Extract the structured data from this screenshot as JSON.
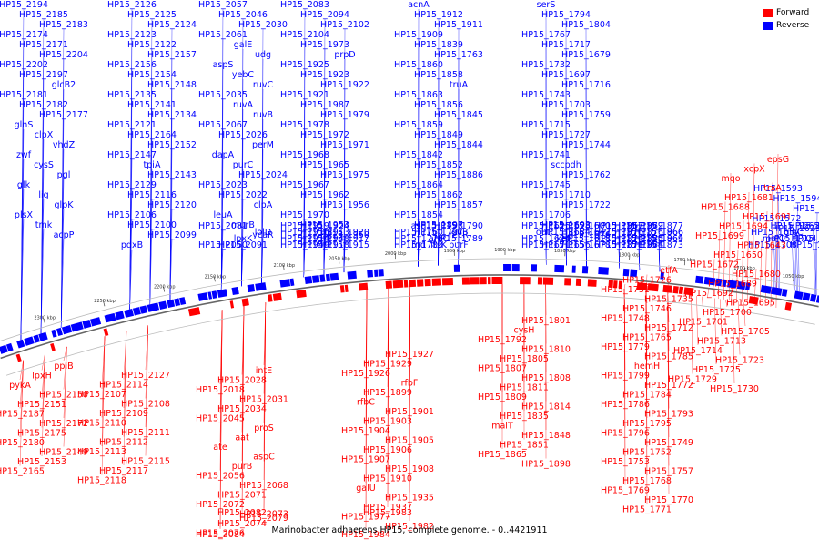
{
  "caption": "Marinobacter adhaerens HP15, complete genome. - 0..4421911",
  "legend": [
    {
      "label": "Forward",
      "color": "#ff0000"
    },
    {
      "label": "Reverse",
      "color": "#0000ff"
    }
  ],
  "colors": {
    "forward": "#ff0000",
    "reverse": "#0000ff",
    "axis": "#888888"
  },
  "ticks": [
    "1050 kbp",
    "1700 kbp",
    "1750 kbp",
    "1800 kbp",
    "1850 kbp",
    "1900 kbp",
    "1950 kbp",
    "2000 kbp",
    "2050 kbp",
    "2100 kbp",
    "2150 kbp",
    "2200 kbp",
    "2250 kbp",
    "2300 kbp"
  ],
  "labels_reverse": [
    "HP15_2194",
    "HP15_2185",
    "HP15_2183",
    "HP15_2174",
    "HP15_2171",
    "HP15_2204",
    "HP15_2202",
    "HP15_2197",
    "glcB2",
    "HP15_2181",
    "HP15_2182",
    "HP15_2177",
    "glnS",
    "clpX",
    "vhdZ",
    "zwf",
    "cysS",
    "pgl",
    "glk",
    "lig",
    "glpK",
    "plsX",
    "tmk",
    "acpP",
    "HP15_2126",
    "HP15_2125",
    "HP15_2124",
    "HP15_2123",
    "HP15_2122",
    "HP15_2157",
    "HP15_2156",
    "HP15_2154",
    "HP15_2148",
    "HP15_2135",
    "HP15_2141",
    "HP15_2134",
    "HP15_2121",
    "HP15_2164",
    "HP15_2152",
    "HP15_2147",
    "tpiA",
    "HP15_2143",
    "HP15_2129",
    "HP15_2116",
    "HP15_2120",
    "HP15_2106",
    "HP15_2100",
    "HP15_2099",
    "pdxB",
    "HP15_2057",
    "HP15_2046",
    "HP15_2030",
    "HP15_2061",
    "galE",
    "udg",
    "aspS",
    "yebC",
    "ruvC",
    "HP15_2035",
    "ruvA",
    "ruvB",
    "HP15_2067",
    "HP15_2026",
    "perM",
    "dapA",
    "purC",
    "HP15_2024",
    "HP15_2023",
    "HP15_2022",
    "clpA",
    "leuA",
    "murB",
    "ycaR",
    "HP15_2060",
    "lpxK",
    "lolD",
    "HP15_2081",
    "HP15_2091",
    "HP15_2083",
    "HP15_2094",
    "HP15_2102",
    "HP15_2104",
    "HP15_1973",
    "prpD",
    "HP15_1925",
    "HP15_1923",
    "HP15_1922",
    "HP15_1921",
    "HP15_1987",
    "HP15_1979",
    "HP15_1978",
    "HP15_1972",
    "HP15_1971",
    "HP15_1968",
    "HP15_1965",
    "HP15_1975",
    "HP15_1967",
    "HP15_1962",
    "HP15_1956",
    "HP15_1970",
    "HP15_1953",
    "HP15_1950",
    "HP15_1949",
    "HP15_1948",
    "HP15_1920",
    "HP15_1919",
    "HP15_1918",
    "HP15_1917",
    "HP15_1916",
    "HP15_1924",
    "HP15_1915",
    "HP15_1914",
    "HP15_1913",
    "acnA",
    "HP15_1912",
    "HP15_1911",
    "HP15_1909",
    "HP15_1839",
    "HP15_1763",
    "HP15_1860",
    "HP15_1858",
    "truA",
    "HP15_1863",
    "HP15_1856",
    "HP15_1845",
    "HP15_1859",
    "HP15_1849",
    "HP15_1844",
    "HP15_1842",
    "HP15_1852",
    "HP15_1886",
    "HP15_1864",
    "HP15_1862",
    "HP15_1857",
    "HP15_1854",
    "HP15_1897",
    "recR",
    "rnd",
    "aroC",
    "leuB",
    "asd",
    "ftsK",
    "HP15_1789",
    "HP15_1760",
    "HP15_1798",
    "purF",
    "HP15_1778",
    "HP15_1797",
    "HP15_1790",
    "HP15_1783",
    "serS",
    "HP15_1794",
    "HP15_1804",
    "HP15_1767",
    "HP15_1717",
    "HP15_1679",
    "HP15_1732",
    "HP15_1697",
    "HP15_1716",
    "HP15_1743",
    "HP15_1703",
    "HP15_1759",
    "HP15_1715",
    "HP15_1727",
    "HP15_1744",
    "HP15_1741",
    "sccpdh",
    "HP15_1762",
    "HP15_1745",
    "HP15_1710",
    "HP15_1722",
    "HP15_1706",
    "HP15_1693",
    "HP15_1676",
    "HP15_1671",
    "kefC",
    "HP15_1642",
    "HP15_1625",
    "HP15_1656",
    "HP15_1618",
    "outC",
    "HP15_1628",
    "HP15_1678",
    "HP15_1624",
    "HP15_1634",
    "HP15_1600",
    "HP15_1593",
    "HP15_1594",
    "HP15_1577",
    "HP15_1572",
    "HP15_1629",
    "HP15_1632",
    "HP15_1657",
    "HP15_1665",
    "HP15_1685",
    "malQ",
    "glgC",
    "HP15_1707",
    "HP15_1708",
    "HP15_1704",
    "HP15_1871",
    "HP15_1875",
    "HP15_1866",
    "HP15_1867",
    "HP15_1868",
    "HP15_1869",
    "HP15_1870",
    "HP15_1872",
    "HP15_1873",
    "HP15_1874",
    "HP15_1876",
    "HP15_1877",
    "HP15_1878",
    "HP15_1880",
    "HP15_1966",
    "HP15_1963",
    "HP15_1974",
    "HP15_1964",
    "HP15_1976",
    "HP15_1969",
    "HP15_1980",
    "HP15_1981",
    "HP15_1931",
    "prpB2",
    "HP15_1933",
    "HP15_1934",
    "HP15_1936",
    "HP15_1938",
    "HP15_1939",
    "HP15_1940",
    "HP15_2033",
    "HP15_2032",
    "HP15_2036",
    "HP15_2037",
    "HP15_2038",
    "HP15_2039",
    "HP15_2070",
    "HP15_2144",
    "HP15_2145",
    "HP15_2146",
    "HP15_2158",
    "HP15_2160",
    "HP15_2161",
    "HP15_2162",
    "HP15_2159",
    "HP15_2142",
    "HP15_1840",
    "HP15_1836",
    "HP15_1830",
    "HP15_1833",
    "HP15_1834",
    "HP15_1841",
    "HP15_1843",
    "HP15_1837",
    "HP15_1846",
    "HP15_1847",
    "HP15_1850",
    "HP15_1802",
    "HP15_1803",
    "HP15_1812",
    "HP15_1813",
    "HP15_1817",
    "HP15_1820",
    "HP15_1822",
    "HP15_1823",
    "HP15_1824",
    "HP15_1718",
    "HP15_1724",
    "HP15_1728",
    "HP15_1742",
    "HP15_1747",
    "HP15_1751",
    "HP15_1756",
    "HP15_1761",
    "HP15_1800",
    "HP15_1791",
    "HP15_1719",
    "HP15_1720",
    "HP15_1758",
    "HP15_1764",
    "HP15_1766",
    "HP15_1733",
    "HP15_1737",
    "HP15_1827",
    "cysG",
    "lolA",
    "gloB",
    "mltD"
  ],
  "labels_forward": [
    "epsG",
    "xcpX",
    "mqo",
    "trxA",
    "HP15_1681",
    "HP15_1688",
    "HP15_1691",
    "HP15_1694",
    "HP15_1699",
    "HP15_1643",
    "HP15_1650",
    "HP15_1672",
    "HP15_1680",
    "HP15_1689",
    "HP15_1692",
    "HP15_1695",
    "HP15_1700",
    "HP15_1701",
    "HP15_1705",
    "HP15_1713",
    "HP15_1714",
    "HP15_1723",
    "HP15_1725",
    "HP15_1729",
    "HP15_1730",
    "etfA",
    "HP15_1726",
    "HP15_1731",
    "HP15_1735",
    "HP15_1746",
    "HP15_1748",
    "HP15_1712",
    "HP15_1765",
    "HP15_1779",
    "HP15_1785",
    "hemH",
    "HP15_1799",
    "HP15_1772",
    "HP15_1784",
    "HP15_1786",
    "HP15_1793",
    "HP15_1795",
    "HP15_1796",
    "HP15_1749",
    "HP15_1752",
    "HP15_1753",
    "HP15_1757",
    "HP15_1768",
    "HP15_1769",
    "HP15_1770",
    "HP15_1771",
    "HP15_1801",
    "cysH",
    "HP15_1792",
    "HP15_1810",
    "HP15_1805",
    "HP15_1807",
    "HP15_1808",
    "HP15_1811",
    "HP15_1809",
    "HP15_1814",
    "HP15_1835",
    "malT",
    "HP15_1848",
    "HP15_1851",
    "HP15_1865",
    "HP15_1898",
    "HP15_1927",
    "HP15_1929",
    "HP15_1926",
    "rfbF",
    "HP15_1899",
    "rfbC",
    "HP15_1901",
    "HP15_1903",
    "HP15_1904",
    "HP15_1905",
    "HP15_1906",
    "HP15_1907",
    "HP15_1908",
    "HP15_1910",
    "galU",
    "HP15_1935",
    "HP15_1937",
    "HP15_1977",
    "HP15_1982",
    "HP15_1983",
    "HP15_1984",
    "intE",
    "HP15_2028",
    "HP15_2018",
    "HP15_2031",
    "HP15_2034",
    "HP15_2045",
    "proS",
    "aat",
    "ate",
    "aspC",
    "purB",
    "HP15_2056",
    "HP15_2068",
    "HP15_2071",
    "HP15_2072",
    "HP15_2073",
    "HP15_2074",
    "HP15_2076",
    "HP15_2079",
    "HP15_2082",
    "HP15_2084",
    "HP15_2127",
    "HP15_2114",
    "HP15_2107",
    "HP15_2108",
    "HP15_2109",
    "HP15_2110",
    "HP15_2111",
    "HP15_2112",
    "HP15_2113",
    "HP15_2115",
    "HP15_2117",
    "HP15_2118",
    "ppiB",
    "lpxH",
    "pykA",
    "HP15_2150",
    "HP15_2151",
    "HP15_2187",
    "HP15_2172",
    "HP15_2175",
    "HP15_2180",
    "HP15_2149",
    "HP15_2153",
    "HP15_2165"
  ]
}
